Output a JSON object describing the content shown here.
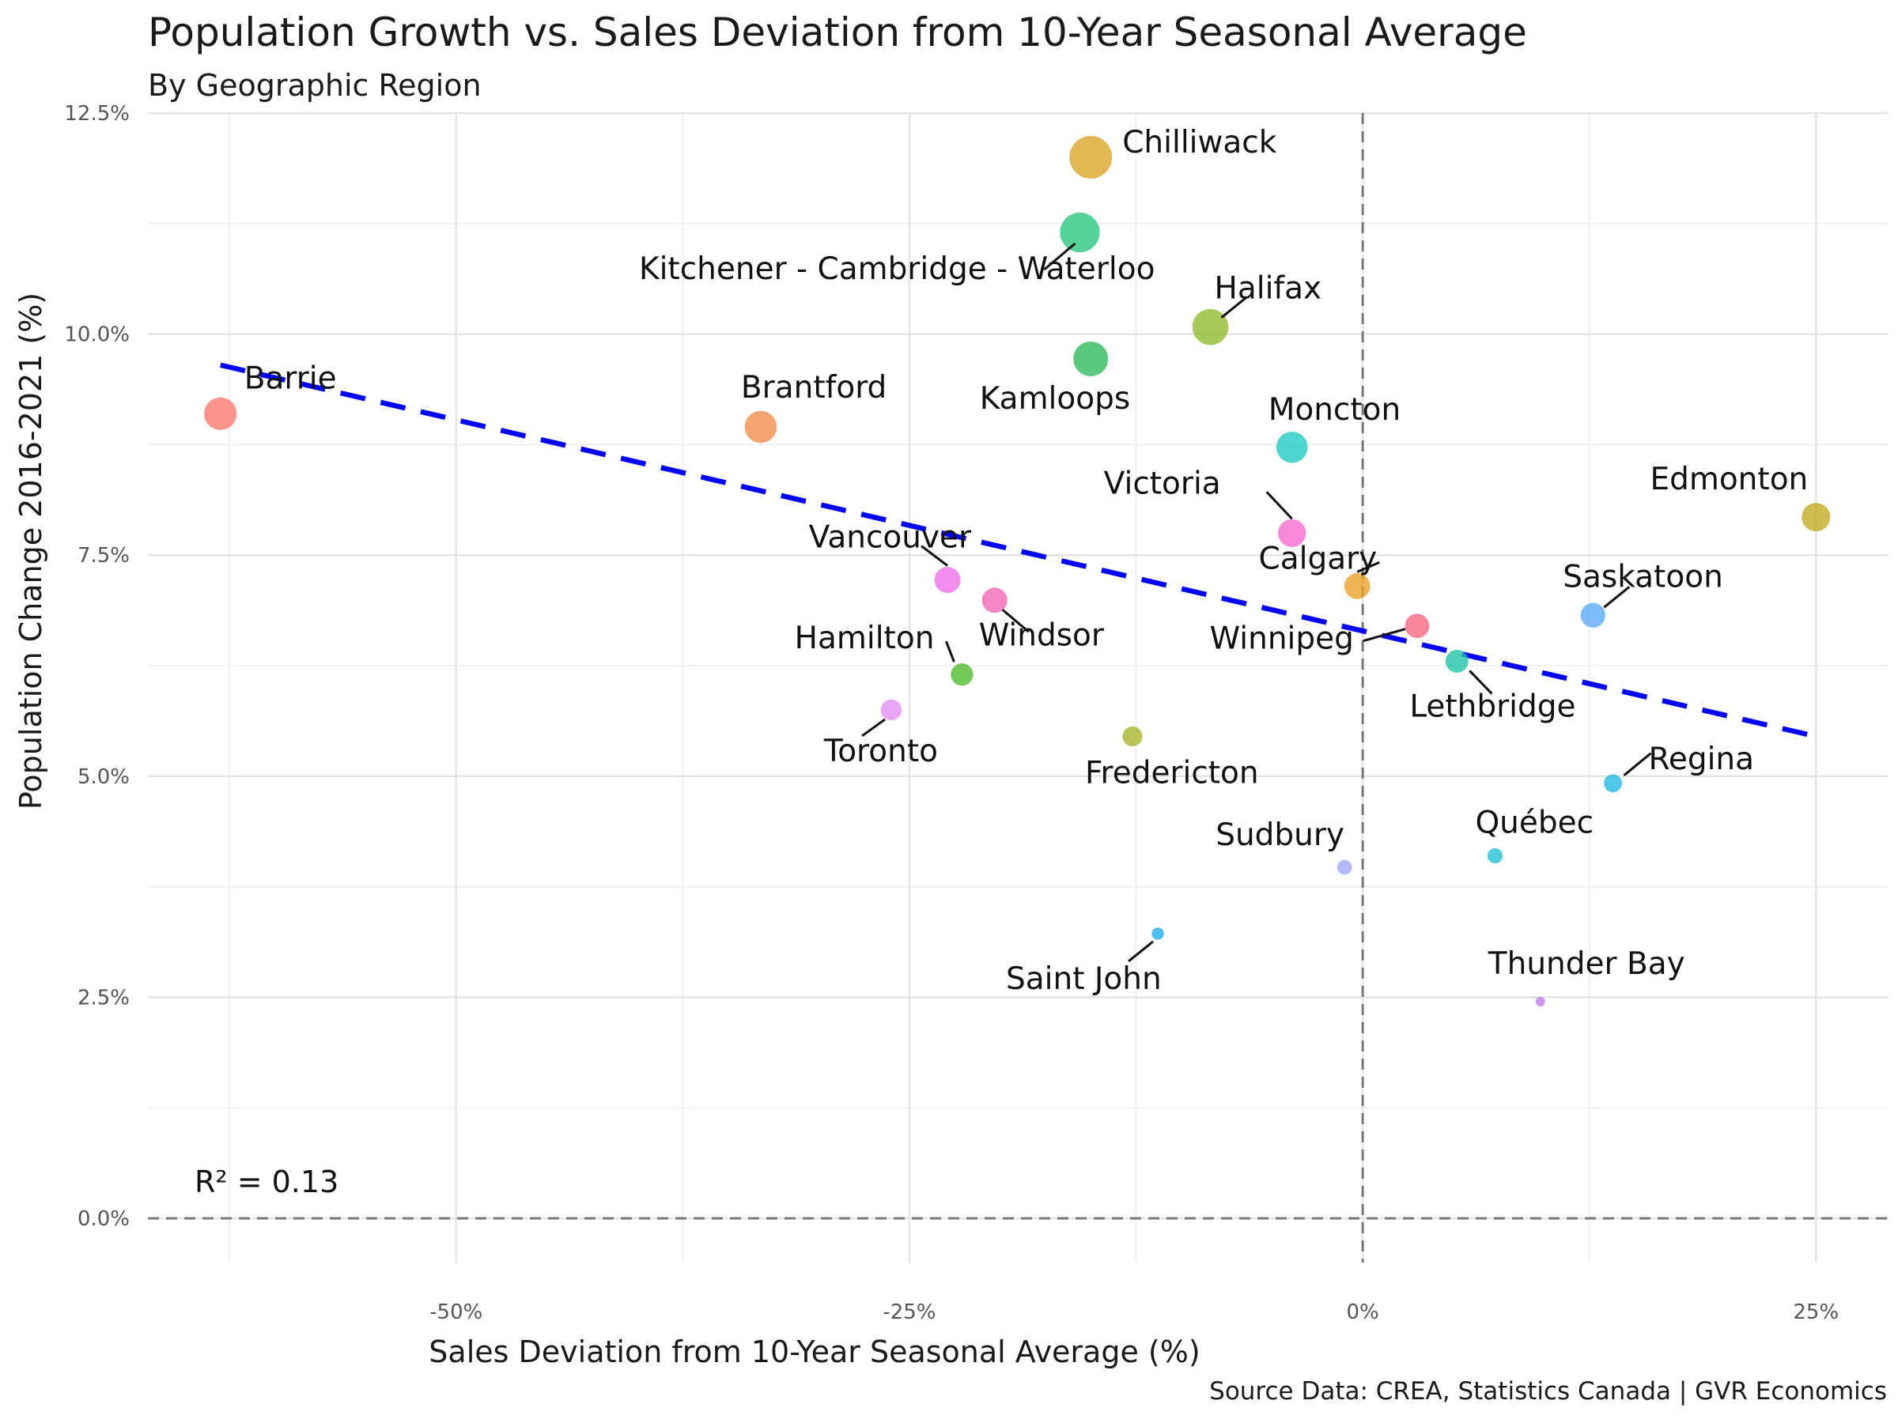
{
  "chart_data": {
    "type": "scatter",
    "title": "Population Growth vs. Sales Deviation from 10-Year Seasonal Average",
    "subtitle": "By Geographic Region",
    "xlabel": "Sales Deviation from 10-Year Seasonal Average (%)",
    "ylabel": "Population Change 2016-2021 (%)",
    "caption": "Source Data: CREA, Statistics Canada | GVR Economics",
    "xlim": [
      -67,
      29
    ],
    "ylim": [
      -0.5,
      12.5
    ],
    "x_ticks": [
      {
        "value": -50,
        "label": "-50%"
      },
      {
        "value": -25,
        "label": "-25%"
      },
      {
        "value": 0,
        "label": "0%"
      },
      {
        "value": 25,
        "label": "25%"
      }
    ],
    "y_ticks": [
      {
        "value": 0,
        "label": "0.0%"
      },
      {
        "value": 2.5,
        "label": "2.5%"
      },
      {
        "value": 5,
        "label": "5.0%"
      },
      {
        "value": 7.5,
        "label": "7.5%"
      },
      {
        "value": 10,
        "label": "10.0%"
      },
      {
        "value": 12.5,
        "label": "12.5%"
      }
    ],
    "grid": true,
    "legend": "none",
    "reference_lines": {
      "x": 0,
      "y": 0
    },
    "trendline": {
      "x": [
        -63,
        25
      ],
      "y": [
        9.65,
        5.45
      ],
      "color": "#0000ff"
    },
    "annotation": "R² = 0.13",
    "points": [
      {
        "name": "Barrie",
        "x": -63.0,
        "y": 9.1,
        "color": "#f8766d"
      },
      {
        "name": "Brantford",
        "x": -33.2,
        "y": 8.95,
        "color": "#f08b47"
      },
      {
        "name": "Chilliwack",
        "x": -15.0,
        "y": 12.0,
        "color": "#dba424"
      },
      {
        "name": "Kitchener - Cambridge - Waterloo",
        "x": -15.6,
        "y": 11.15,
        "color": "#26c67b"
      },
      {
        "name": "Halifax",
        "x": -8.4,
        "y": 10.08,
        "color": "#8dba2a"
      },
      {
        "name": "Kamloops",
        "x": -15.0,
        "y": 9.72,
        "color": "#2cba5a"
      },
      {
        "name": "Moncton",
        "x": -3.9,
        "y": 8.72,
        "color": "#1ec9c2"
      },
      {
        "name": "Edmonton",
        "x": 25.0,
        "y": 7.93,
        "color": "#c2a91e"
      },
      {
        "name": "Victoria",
        "x": -3.9,
        "y": 7.75,
        "color": "#f666cf"
      },
      {
        "name": "Calgary",
        "x": -0.3,
        "y": 7.15,
        "color": "#e8a022"
      },
      {
        "name": "Vancouver",
        "x": -22.9,
        "y": 7.22,
        "color": "#ee6de8"
      },
      {
        "name": "Windsor",
        "x": -20.3,
        "y": 6.99,
        "color": "#f565b3"
      },
      {
        "name": "Saskatoon",
        "x": 12.7,
        "y": 6.82,
        "color": "#5aa8f8"
      },
      {
        "name": "Winnipeg",
        "x": 3.0,
        "y": 6.7,
        "color": "#f8647e"
      },
      {
        "name": "Lethbridge",
        "x": 5.2,
        "y": 6.3,
        "color": "#19c3a5"
      },
      {
        "name": "Hamilton",
        "x": -22.1,
        "y": 6.15,
        "color": "#4eba2a"
      },
      {
        "name": "Toronto",
        "x": -26.0,
        "y": 5.75,
        "color": "#e38df5"
      },
      {
        "name": "Fredericton",
        "x": -12.7,
        "y": 5.45,
        "color": "#a6b425"
      },
      {
        "name": "Regina",
        "x": 13.8,
        "y": 4.92,
        "color": "#20b8e6"
      },
      {
        "name": "Québec",
        "x": 7.3,
        "y": 4.1,
        "color": "#1cc0d6"
      },
      {
        "name": "Sudbury",
        "x": -1.0,
        "y": 3.97,
        "color": "#9fa6f6"
      },
      {
        "name": "Saint John",
        "x": -11.3,
        "y": 3.22,
        "color": "#18adee"
      },
      {
        "name": "Thunder Bay",
        "x": 9.8,
        "y": 2.45,
        "color": "#c277f0"
      }
    ]
  }
}
